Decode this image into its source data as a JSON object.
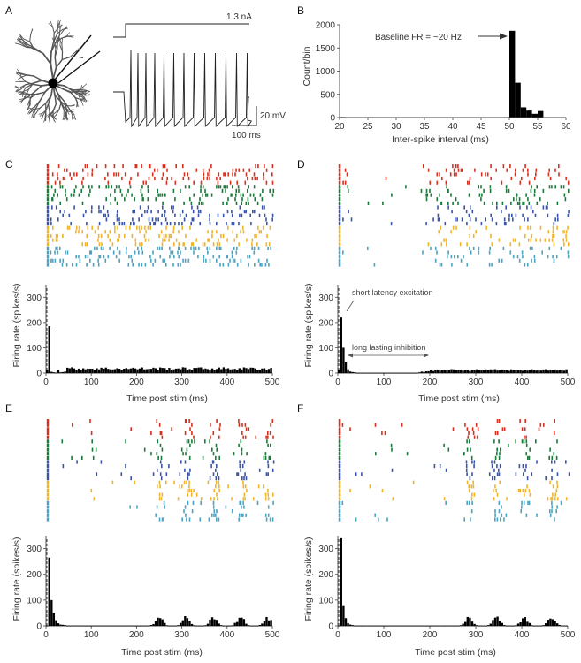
{
  "panel_labels": [
    "A",
    "B",
    "C",
    "D",
    "E",
    "F"
  ],
  "panel_a": {
    "current_label": "1.3 nA",
    "voltage_scale": "20 mV",
    "time_scale": "100 ms"
  },
  "colors": {
    "bars": "#000000",
    "axis": "#444444",
    "trials": [
      "#d7301f",
      "#1b7a3a",
      "#3a54a8",
      "#f0b429",
      "#4aa3c2"
    ]
  },
  "chart_data": [
    {
      "panel": "B",
      "type": "bar",
      "xlabel": "Inter-spike interval (ms)",
      "ylabel": "Count/bin",
      "xlim": [
        20,
        60
      ],
      "ylim": [
        0,
        2000
      ],
      "xticks": [
        20,
        25,
        30,
        35,
        40,
        45,
        50,
        55,
        60
      ],
      "yticks": [
        0,
        500,
        1000,
        1500,
        2000
      ],
      "annotation": "Baseline FR =  ~20 Hz",
      "bins": [
        {
          "x": 20.5,
          "y": 12
        },
        {
          "x": 25.5,
          "y": 10
        },
        {
          "x": 31.5,
          "y": 8
        },
        {
          "x": 39.5,
          "y": 6
        },
        {
          "x": 49.5,
          "y": 10
        },
        {
          "x": 50.5,
          "y": 1870
        },
        {
          "x": 51.5,
          "y": 750
        },
        {
          "x": 52.5,
          "y": 220
        },
        {
          "x": 53.5,
          "y": 150
        },
        {
          "x": 54.5,
          "y": 80
        },
        {
          "x": 55.5,
          "y": 140
        }
      ]
    },
    {
      "panel": "C",
      "type": "bar",
      "xlabel": "Time post stim (ms)",
      "ylabel": "Firing rate (spikes/s)",
      "xlim": [
        0,
        500
      ],
      "ylim": [
        0,
        350
      ],
      "xticks": [
        0,
        100,
        200,
        300,
        400,
        500
      ],
      "yticks": [
        0,
        100,
        200,
        300
      ],
      "peak": {
        "t": 4,
        "rate": 185
      },
      "early": [
        {
          "t": 4,
          "rate": 185
        },
        {
          "t": 9,
          "rate": 5
        },
        {
          "t": 14,
          "rate": 3
        },
        {
          "t": 19,
          "rate": 2
        },
        {
          "t": 24,
          "rate": 12
        },
        {
          "t": 29,
          "rate": 3
        },
        {
          "t": 34,
          "rate": 4
        },
        {
          "t": 39,
          "rate": 6
        }
      ],
      "baseline_rate": 18,
      "inhibition_ms": [],
      "rhythm_period_ms": 0,
      "annotations": []
    },
    {
      "panel": "D",
      "type": "bar",
      "xlabel": "Time post stim (ms)",
      "ylabel": "Firing rate (spikes/s)",
      "xlim": [
        0,
        500
      ],
      "ylim": [
        0,
        350
      ],
      "xticks": [
        0,
        100,
        200,
        300,
        400,
        500
      ],
      "yticks": [
        0,
        100,
        200,
        300
      ],
      "early": [
        {
          "t": 4,
          "rate": 220
        },
        {
          "t": 9,
          "rate": 100
        },
        {
          "t": 14,
          "rate": 45
        },
        {
          "t": 19,
          "rate": 15
        },
        {
          "t": 24,
          "rate": 6
        },
        {
          "t": 29,
          "rate": 4
        },
        {
          "t": 34,
          "rate": 3
        }
      ],
      "baseline_rate": 12,
      "inhibition_ms": [
        20,
        175
      ],
      "rhythm_period_ms": 0,
      "annotations": [
        "short latency excitation",
        "long lasting inhibition"
      ]
    },
    {
      "panel": "E",
      "type": "bar",
      "xlabel": "Time post stim (ms)",
      "ylabel": "Firing rate (spikes/s)",
      "xlim": [
        0,
        500
      ],
      "ylim": [
        0,
        350
      ],
      "xticks": [
        0,
        100,
        200,
        300,
        400,
        500
      ],
      "yticks": [
        0,
        100,
        200,
        300
      ],
      "early": [
        {
          "t": 4,
          "rate": 265
        },
        {
          "t": 9,
          "rate": 100
        },
        {
          "t": 14,
          "rate": 50
        },
        {
          "t": 19,
          "rate": 22
        },
        {
          "t": 24,
          "rate": 10
        },
        {
          "t": 29,
          "rate": 5
        },
        {
          "t": 34,
          "rate": 4
        },
        {
          "t": 39,
          "rate": 3
        }
      ],
      "baseline_rate": 0,
      "inhibition_ms": [
        40,
        220
      ],
      "rhythm_period_ms": 60,
      "rhythm_first_ms": 250,
      "rhythm_peak_rate": 32,
      "annotations": []
    },
    {
      "panel": "F",
      "type": "bar",
      "xlabel": "Time post stim (ms)",
      "ylabel": "Firing rate (spikes/s)",
      "xlim": [
        0,
        500
      ],
      "ylim": [
        0,
        350
      ],
      "xticks": [
        0,
        100,
        200,
        300,
        400,
        500
      ],
      "yticks": [
        0,
        100,
        200,
        300
      ],
      "early": [
        {
          "t": 4,
          "rate": 340
        },
        {
          "t": 9,
          "rate": 80
        },
        {
          "t": 14,
          "rate": 30
        },
        {
          "t": 19,
          "rate": 10
        },
        {
          "t": 24,
          "rate": 5
        },
        {
          "t": 29,
          "rate": 3
        }
      ],
      "baseline_rate": 0,
      "inhibition_ms": [
        35,
        265
      ],
      "rhythm_period_ms": 60,
      "rhythm_first_ms": 285,
      "rhythm_peak_rate": 30,
      "annotations": []
    }
  ]
}
